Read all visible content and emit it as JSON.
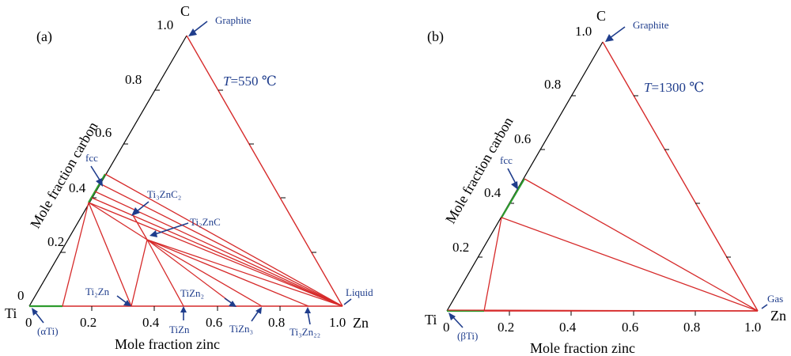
{
  "panels": [
    {
      "label": "(a)",
      "temperature_var": "T",
      "temperature_val": "=550 ℃",
      "vertex_c": "C",
      "vertex_ti": "Ti",
      "vertex_zn": "Zn",
      "left_axis_title": "Mole fraction carbon",
      "bottom_axis_title": "Mole fraction zinc",
      "left_ticks": [
        "0",
        "0.2",
        "0.4",
        "0.6",
        "0.8",
        "1.0"
      ],
      "bottom_ticks": [
        "0",
        "0.2",
        "0.4",
        "0.6",
        "0.8",
        "1.0"
      ],
      "phases": {
        "graphite": "Graphite",
        "fcc": "fcc",
        "ti3znc2": "Ti₃ZnC₂",
        "ti2znc": "Ti₂ZnC",
        "liquid": "Liquid",
        "ti2zn": "Ti₂Zn",
        "tizn": "TiZn",
        "tizn2": "TiZn₂",
        "tizn3": "TiZn₃",
        "ti3zn22": "Ti₃Zn₂₂",
        "ti_solid": "(αTi)"
      }
    },
    {
      "label": "(b)",
      "temperature_var": "T",
      "temperature_val": "=1300 ℃",
      "vertex_c": "C",
      "vertex_ti": "Ti",
      "vertex_zn": "Zn",
      "left_axis_title": "Mole fraction carbon",
      "bottom_axis_title": "Mole fraction zinc",
      "left_ticks": [
        "0",
        "0.2",
        "0.4",
        "0.6",
        "0.8",
        "1.0"
      ],
      "bottom_ticks": [
        "0",
        "0.2",
        "0.4",
        "0.6",
        "0.8",
        "1.0"
      ],
      "phases": {
        "graphite": "Graphite",
        "fcc": "fcc",
        "gas": "Gas",
        "ti_solid": "(βTi)"
      }
    }
  ],
  "colors": {
    "boundary": "#d62a2a",
    "tie_line": "#d62a2a",
    "fcc_region": "#2e9b2e",
    "annotation": "#1f3d8c"
  }
}
